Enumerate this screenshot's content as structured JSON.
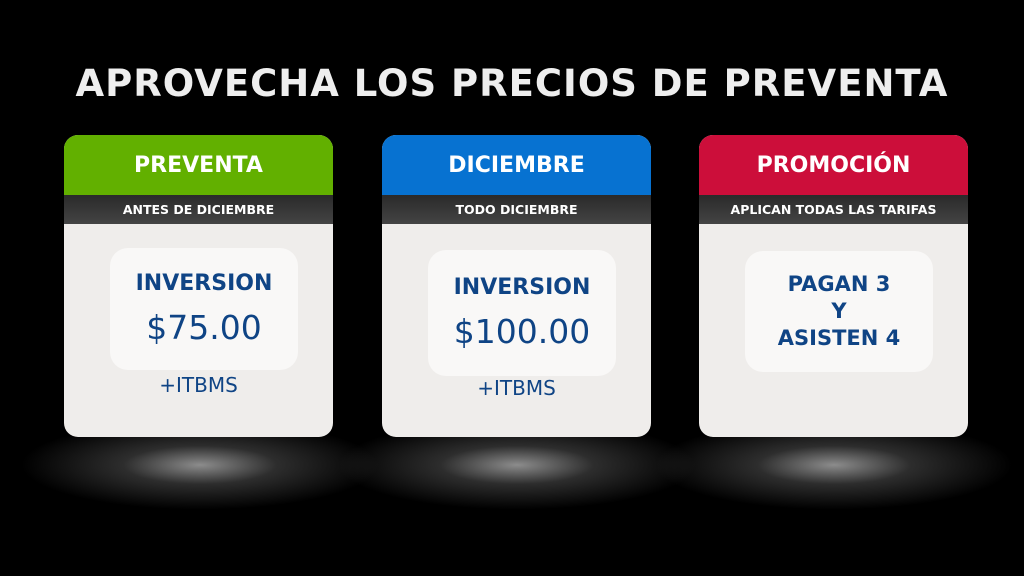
{
  "title": "APROVECHA LOS PRECIOS DE PREVENTA",
  "colors": {
    "green": "#62b000",
    "blue": "#0772d1",
    "red": "#cc0e3a",
    "text": "#0f4485"
  },
  "cards": [
    {
      "header": "PREVENTA",
      "subheader": "ANTES DE DICIEMBRE",
      "label": "INVERSION",
      "price": "$75.00",
      "tax": "+ITBMS"
    },
    {
      "header": "DICIEMBRE",
      "subheader": "TODO DICIEMBRE",
      "label": "INVERSION",
      "price": "$100.00",
      "tax": "+ITBMS"
    },
    {
      "header": "PROMOCIÓN",
      "subheader": "APLICAN TODAS LAS TARIFAS",
      "lines": [
        "PAGAN 3",
        "Y",
        "ASISTEN 4"
      ]
    }
  ]
}
